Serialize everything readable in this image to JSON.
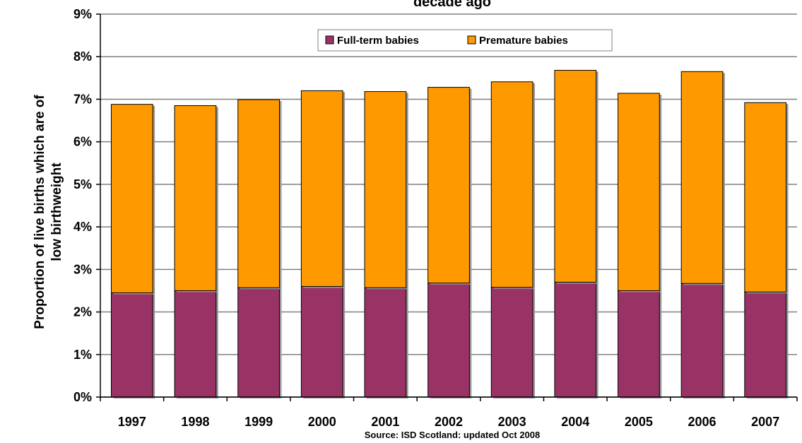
{
  "chart_data": {
    "type": "bar",
    "stacked": true,
    "title": "decade ago",
    "ylabel_lines": [
      "Proportion of live births which are of",
      "low birthweight"
    ],
    "xlabel": "",
    "source": "Source:  ISD Scotland: updated Oct 2008",
    "categories": [
      "1997",
      "1998",
      "1999",
      "2000",
      "2001",
      "2002",
      "2003",
      "2004",
      "2005",
      "2006",
      "2007"
    ],
    "series": [
      {
        "name": "Full-term babies",
        "color": "#993366",
        "values": [
          2.45,
          2.5,
          2.57,
          2.6,
          2.57,
          2.68,
          2.58,
          2.7,
          2.5,
          2.67,
          2.47
        ]
      },
      {
        "name": "Premature babies",
        "color": "#FF9900",
        "values": [
          4.43,
          4.35,
          4.42,
          4.6,
          4.61,
          4.6,
          4.83,
          4.98,
          4.64,
          4.98,
          4.45
        ]
      }
    ],
    "ylim": [
      0,
      9
    ],
    "yticks": [
      "0%",
      "1%",
      "2%",
      "3%",
      "4%",
      "5%",
      "6%",
      "7%",
      "8%",
      "9%"
    ],
    "grid": true,
    "legend": "top-center"
  }
}
